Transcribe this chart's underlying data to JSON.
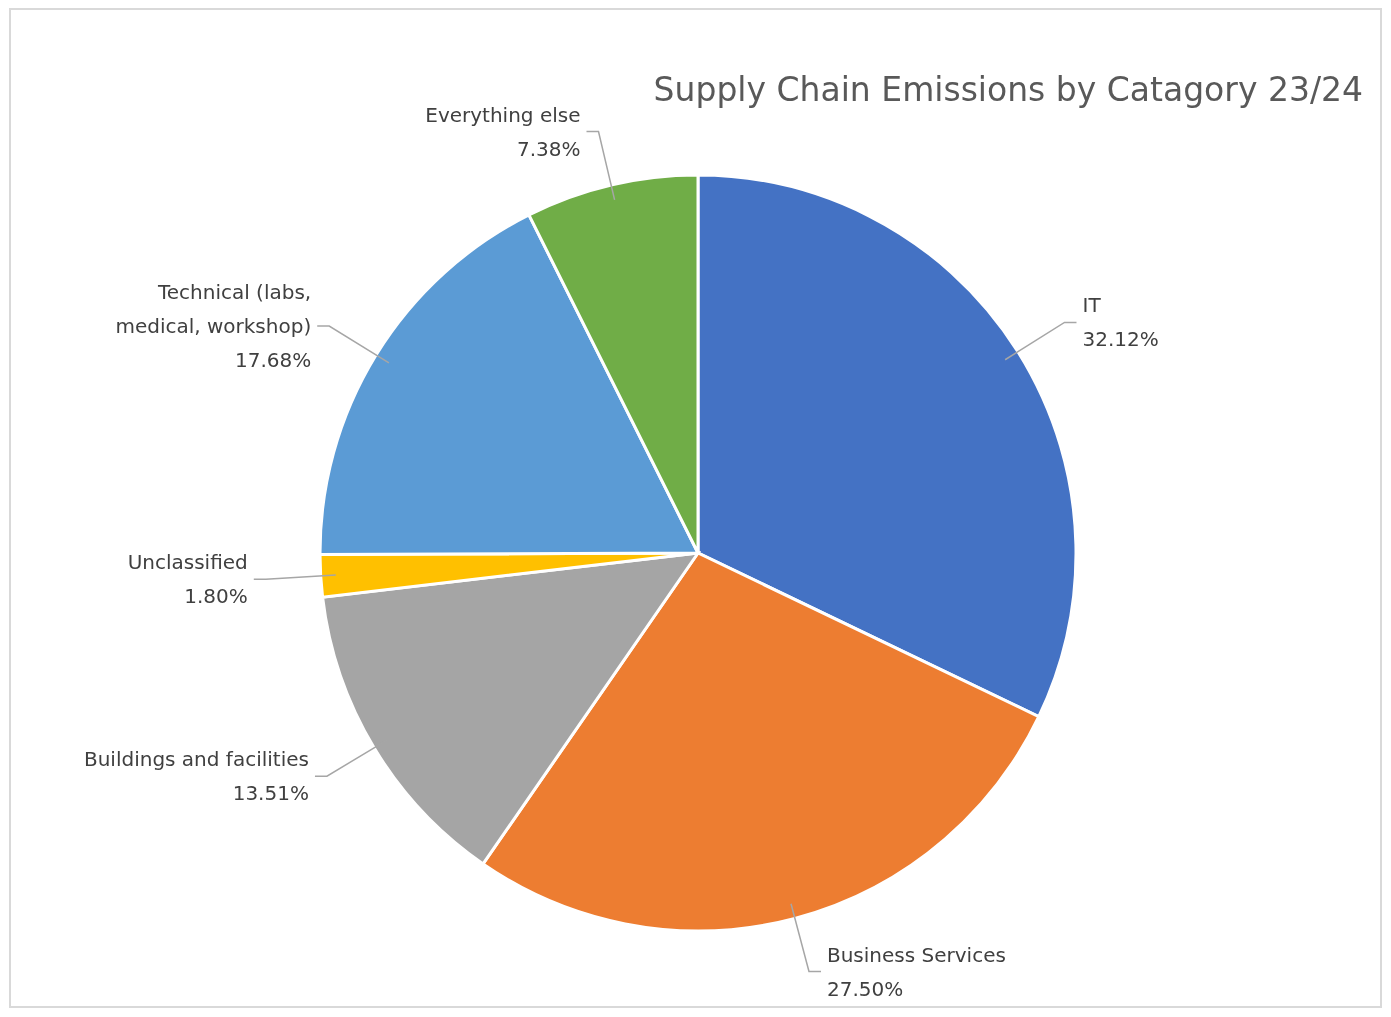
{
  "chart_data": {
    "type": "pie",
    "title": "Supply Chain Emissions by Catagory 23/24",
    "categories": [
      "IT",
      "Business Services",
      "Buildings and facilities",
      "Unclassified",
      "Technical (labs, medical, workshop)",
      "Everything else"
    ],
    "values": [
      32.12,
      27.5,
      13.51,
      1.8,
      17.68,
      7.38
    ],
    "colors": [
      "#4472c4",
      "#ed7d31",
      "#a5a5a5",
      "#ffc000",
      "#5b9bd5",
      "#70ad47"
    ],
    "value_labels": [
      "32.12%",
      "27.50%",
      "13.51%",
      "1.80%",
      "17.68%",
      "7.38%"
    ]
  }
}
